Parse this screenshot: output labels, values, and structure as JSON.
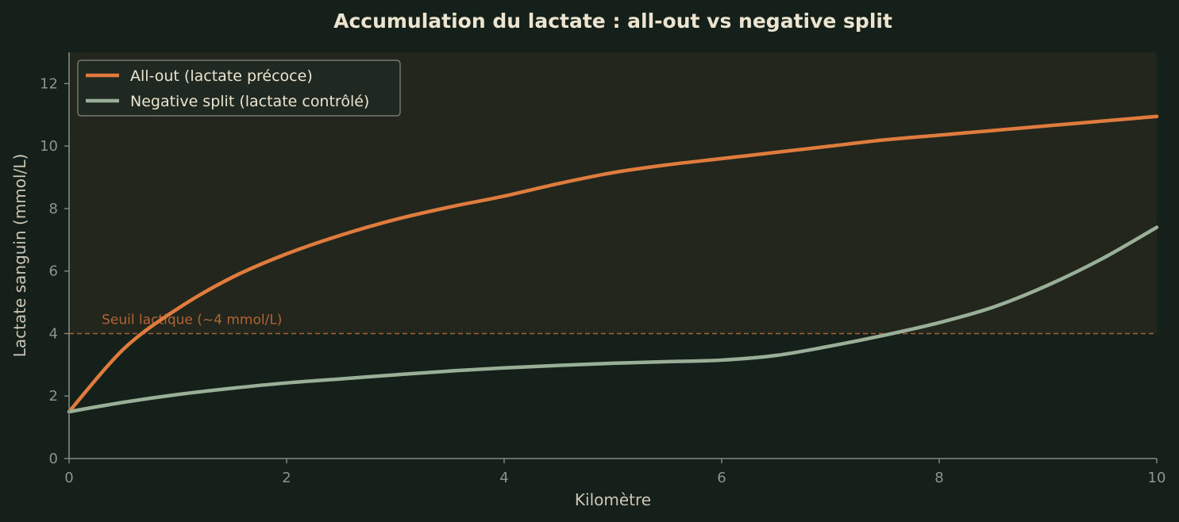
{
  "chart_data": {
    "type": "line",
    "title": "Accumulation du lactate : all-out vs negative split",
    "xlabel": "Kilomètre",
    "ylabel": "Lactate sanguin (mmol/L)",
    "xlim": [
      0,
      10
    ],
    "ylim": [
      0,
      13
    ],
    "x_ticks": [
      0,
      2,
      4,
      6,
      8,
      10
    ],
    "y_ticks": [
      0,
      2,
      4,
      6,
      8,
      10,
      12
    ],
    "grid": false,
    "legend_position": "top-left",
    "x": [
      0,
      0.5,
      1,
      1.5,
      2,
      2.5,
      3,
      3.5,
      4,
      4.5,
      5,
      5.5,
      6,
      6.5,
      7,
      7.5,
      8,
      8.5,
      9,
      9.5,
      10
    ],
    "series": [
      {
        "name": "All-out (lactate précoce)",
        "color": "#e07b3e",
        "values": [
          1.5,
          3.5,
          4.8,
          5.8,
          6.55,
          7.15,
          7.65,
          8.05,
          8.4,
          8.8,
          9.15,
          9.4,
          9.6,
          9.8,
          10.0,
          10.2,
          10.35,
          10.5,
          10.65,
          10.8,
          10.95
        ]
      },
      {
        "name": "Negative split (lactate contrôlé)",
        "color": "#9aaf98",
        "values": [
          1.5,
          1.8,
          2.05,
          2.25,
          2.42,
          2.55,
          2.68,
          2.8,
          2.9,
          2.98,
          3.05,
          3.1,
          3.15,
          3.3,
          3.6,
          3.95,
          4.35,
          4.85,
          5.55,
          6.4,
          7.4
        ]
      }
    ],
    "reference_lines": [
      {
        "y": 4,
        "label": "Seuil lactique (~4 mmol/L)",
        "color": "#c26a36"
      }
    ]
  },
  "colors": {
    "background": "#142019",
    "plot_shade_above_threshold": "#22261d",
    "axis": "#838a80",
    "tick_text": "#8e9488",
    "label_text": "#cbc6b6",
    "title_text": "#ece4cf",
    "legend_background": "#1f2a23",
    "legend_border": "#8e9488"
  }
}
